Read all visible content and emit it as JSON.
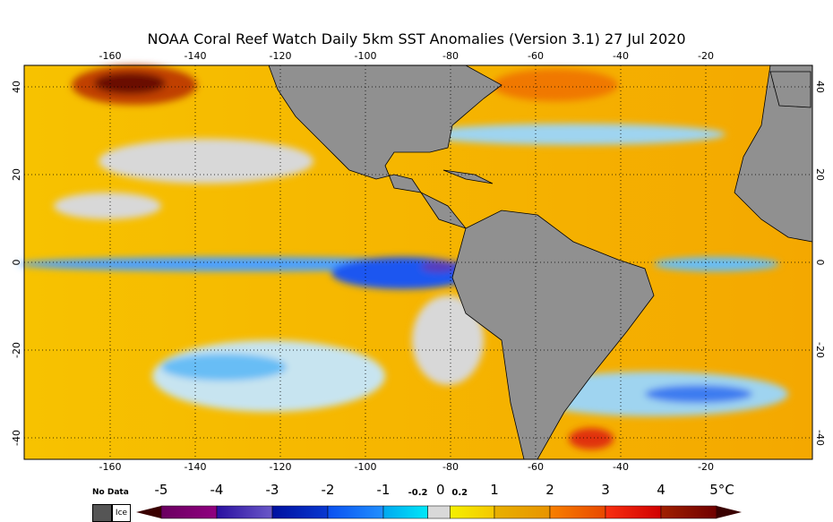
{
  "title": "NOAA Coral Reef Watch Daily 5km SST Anomalies (Version 3.1)  27 Jul 2020",
  "map": {
    "lon_ticks": [
      "-160",
      "-140",
      "-120",
      "-100",
      "-80",
      "-60",
      "-40",
      "-20"
    ],
    "lat_ticks_left": [
      "40",
      "20",
      "0",
      "-20",
      "-40"
    ],
    "lat_ticks_right": [
      "40",
      "20",
      "0",
      "-20",
      "-40"
    ],
    "lon_values": [
      -160,
      -140,
      -120,
      -100,
      -80,
      -60,
      -40,
      -20
    ],
    "lat_values": [
      40,
      20,
      0,
      -20,
      -40
    ]
  },
  "colorbar": {
    "no_data_label": "No Data",
    "ice_label": "Ice",
    "labels": [
      "-5",
      "-4",
      "-3",
      "-2",
      "-1",
      "1",
      "2",
      "3",
      "4",
      "5°C"
    ],
    "small_labels": [
      "-0.2",
      "0",
      "0.2"
    ],
    "colors": {
      "no_data": "#555555",
      "land": "#909090",
      "neutral": "#d9d9d9"
    }
  }
}
